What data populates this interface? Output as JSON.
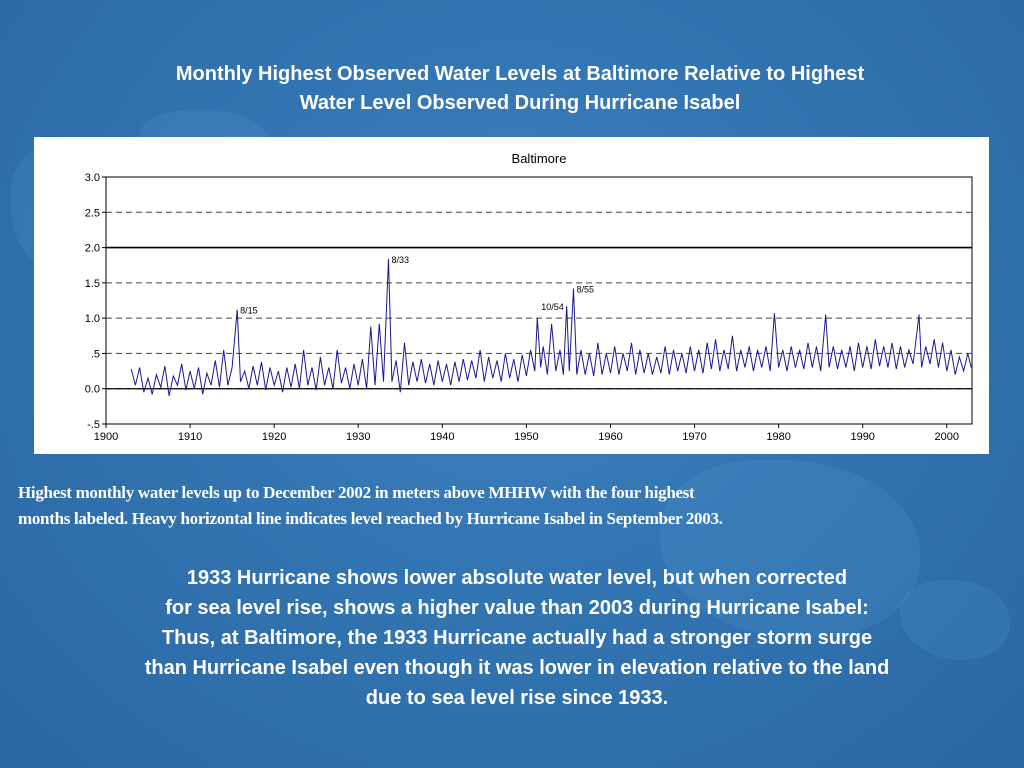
{
  "slide": {
    "title_line1": "Monthly Highest Observed Water Levels at Baltimore Relative to Highest",
    "title_line2": "Water Level Observed During Hurricane Isabel",
    "caption_line1": "Highest monthly water levels up to December 2002 in meters above MHHW with the four highest",
    "caption_line2": "months labeled.  Heavy horizontal line indicates level reached by Hurricane Isabel in September 2003.",
    "note_lines": [
      "1933 Hurricane shows lower absolute water level, but when corrected",
      "for sea level rise, shows a higher value than 2003 during Hurricane Isabel:",
      "Thus, at Baltimore, the 1933 Hurricane actually had a stronger storm surge",
      "than Hurricane Isabel even though it was lower in elevation relative to the land",
      "due to sea level rise since 1933."
    ]
  },
  "chart_data": {
    "type": "line",
    "title": "Baltimore",
    "xlabel": "",
    "ylabel": "",
    "xlim": [
      1900,
      2003
    ],
    "ylim": [
      -0.5,
      3.0
    ],
    "x_ticks": [
      1900,
      1910,
      1920,
      1930,
      1940,
      1950,
      1960,
      1970,
      1980,
      1990,
      2000
    ],
    "y_ticks": [
      {
        "value": 3.0,
        "label": "3.0"
      },
      {
        "value": 2.5,
        "label": "2.5"
      },
      {
        "value": 2.0,
        "label": "2.0"
      },
      {
        "value": 1.5,
        "label": "1.5"
      },
      {
        "value": 1.0,
        "label": "1.0"
      },
      {
        "value": 0.5,
        "label": ".5"
      },
      {
        "value": 0.0,
        "label": "0.0"
      },
      {
        "value": -0.5,
        "label": "-.5"
      }
    ],
    "grid": "dashed horizontal",
    "isabel_level": 2.0,
    "zero_line": 0.0,
    "series_color": "#1a1a8c",
    "labeled_peaks": [
      {
        "x": 1915.6,
        "y": 1.12,
        "label": "8/15"
      },
      {
        "x": 1933.6,
        "y": 1.84,
        "label": "8/33"
      },
      {
        "x": 1954.8,
        "y": 1.17,
        "label": "10/54"
      },
      {
        "x": 1955.6,
        "y": 1.42,
        "label": "8/55"
      }
    ],
    "series": [
      {
        "values": [
          [
            1903.0,
            0.28
          ],
          [
            1903.5,
            0.05
          ],
          [
            1904.0,
            0.3
          ],
          [
            1904.5,
            -0.05
          ],
          [
            1905.0,
            0.15
          ],
          [
            1905.5,
            -0.08
          ],
          [
            1906.0,
            0.2
          ],
          [
            1906.5,
            0.02
          ],
          [
            1907.0,
            0.32
          ],
          [
            1907.5,
            -0.1
          ],
          [
            1908.0,
            0.18
          ],
          [
            1908.5,
            0.05
          ],
          [
            1909.0,
            0.35
          ],
          [
            1909.5,
            -0.02
          ],
          [
            1910.0,
            0.25
          ],
          [
            1910.5,
            0.0
          ],
          [
            1911.0,
            0.3
          ],
          [
            1911.5,
            -0.08
          ],
          [
            1912.0,
            0.22
          ],
          [
            1912.5,
            0.05
          ],
          [
            1913.0,
            0.4
          ],
          [
            1913.5,
            0.02
          ],
          [
            1914.0,
            0.55
          ],
          [
            1914.5,
            0.05
          ],
          [
            1915.0,
            0.3
          ],
          [
            1915.6,
            1.12
          ],
          [
            1916.0,
            0.1
          ],
          [
            1916.5,
            0.25
          ],
          [
            1917.0,
            0.0
          ],
          [
            1917.5,
            0.32
          ],
          [
            1918.0,
            0.05
          ],
          [
            1918.5,
            0.38
          ],
          [
            1919.0,
            -0.02
          ],
          [
            1919.5,
            0.3
          ],
          [
            1920.0,
            0.05
          ],
          [
            1920.5,
            0.25
          ],
          [
            1921.0,
            -0.05
          ],
          [
            1921.5,
            0.3
          ],
          [
            1922.0,
            0.02
          ],
          [
            1922.5,
            0.35
          ],
          [
            1923.0,
            0.0
          ],
          [
            1923.5,
            0.55
          ],
          [
            1924.0,
            0.05
          ],
          [
            1924.5,
            0.3
          ],
          [
            1925.0,
            -0.02
          ],
          [
            1925.5,
            0.45
          ],
          [
            1926.0,
            0.05
          ],
          [
            1926.5,
            0.3
          ],
          [
            1927.0,
            0.0
          ],
          [
            1927.5,
            0.55
          ],
          [
            1928.0,
            0.08
          ],
          [
            1928.5,
            0.3
          ],
          [
            1929.0,
            0.0
          ],
          [
            1929.5,
            0.35
          ],
          [
            1930.0,
            0.05
          ],
          [
            1930.5,
            0.42
          ],
          [
            1931.0,
            0.0
          ],
          [
            1931.5,
            0.88
          ],
          [
            1932.0,
            0.05
          ],
          [
            1932.5,
            0.92
          ],
          [
            1933.0,
            0.1
          ],
          [
            1933.6,
            1.84
          ],
          [
            1934.0,
            0.1
          ],
          [
            1934.5,
            0.4
          ],
          [
            1935.0,
            -0.05
          ],
          [
            1935.5,
            0.65
          ],
          [
            1936.0,
            0.05
          ],
          [
            1936.5,
            0.38
          ],
          [
            1937.0,
            0.1
          ],
          [
            1937.5,
            0.42
          ],
          [
            1938.0,
            0.08
          ],
          [
            1938.5,
            0.35
          ],
          [
            1939.0,
            0.05
          ],
          [
            1939.5,
            0.4
          ],
          [
            1940.0,
            0.1
          ],
          [
            1940.5,
            0.35
          ],
          [
            1941.0,
            0.05
          ],
          [
            1941.5,
            0.38
          ],
          [
            1942.0,
            0.1
          ],
          [
            1942.5,
            0.42
          ],
          [
            1943.0,
            0.12
          ],
          [
            1943.5,
            0.4
          ],
          [
            1944.0,
            0.15
          ],
          [
            1944.5,
            0.55
          ],
          [
            1945.0,
            0.1
          ],
          [
            1945.5,
            0.45
          ],
          [
            1946.0,
            0.15
          ],
          [
            1946.5,
            0.4
          ],
          [
            1947.0,
            0.1
          ],
          [
            1947.5,
            0.5
          ],
          [
            1948.0,
            0.15
          ],
          [
            1948.5,
            0.42
          ],
          [
            1949.0,
            0.1
          ],
          [
            1949.5,
            0.48
          ],
          [
            1950.0,
            0.18
          ],
          [
            1950.5,
            0.55
          ],
          [
            1951.0,
            0.25
          ],
          [
            1951.3,
            1.0
          ],
          [
            1951.7,
            0.3
          ],
          [
            1952.0,
            0.6
          ],
          [
            1952.5,
            0.2
          ],
          [
            1953.0,
            0.92
          ],
          [
            1953.5,
            0.25
          ],
          [
            1954.0,
            0.55
          ],
          [
            1954.4,
            0.2
          ],
          [
            1954.8,
            1.17
          ],
          [
            1955.1,
            0.25
          ],
          [
            1955.6,
            1.42
          ],
          [
            1956.0,
            0.2
          ],
          [
            1956.5,
            0.55
          ],
          [
            1957.0,
            0.2
          ],
          [
            1957.5,
            0.5
          ],
          [
            1958.0,
            0.18
          ],
          [
            1958.5,
            0.65
          ],
          [
            1959.0,
            0.2
          ],
          [
            1959.5,
            0.5
          ],
          [
            1960.0,
            0.22
          ],
          [
            1960.5,
            0.6
          ],
          [
            1961.0,
            0.2
          ],
          [
            1961.5,
            0.5
          ],
          [
            1962.0,
            0.25
          ],
          [
            1962.5,
            0.65
          ],
          [
            1963.0,
            0.2
          ],
          [
            1963.5,
            0.55
          ],
          [
            1964.0,
            0.22
          ],
          [
            1964.5,
            0.5
          ],
          [
            1965.0,
            0.2
          ],
          [
            1965.5,
            0.45
          ],
          [
            1966.0,
            0.22
          ],
          [
            1966.5,
            0.6
          ],
          [
            1967.0,
            0.2
          ],
          [
            1967.5,
            0.55
          ],
          [
            1968.0,
            0.25
          ],
          [
            1968.5,
            0.5
          ],
          [
            1969.0,
            0.22
          ],
          [
            1969.5,
            0.6
          ],
          [
            1970.0,
            0.25
          ],
          [
            1970.5,
            0.55
          ],
          [
            1971.0,
            0.22
          ],
          [
            1971.5,
            0.65
          ],
          [
            1972.0,
            0.28
          ],
          [
            1972.5,
            0.7
          ],
          [
            1973.0,
            0.25
          ],
          [
            1973.5,
            0.55
          ],
          [
            1974.0,
            0.28
          ],
          [
            1974.5,
            0.75
          ],
          [
            1975.0,
            0.25
          ],
          [
            1975.5,
            0.55
          ],
          [
            1976.0,
            0.3
          ],
          [
            1976.5,
            0.6
          ],
          [
            1977.0,
            0.25
          ],
          [
            1977.5,
            0.55
          ],
          [
            1978.0,
            0.3
          ],
          [
            1978.5,
            0.6
          ],
          [
            1979.0,
            0.25
          ],
          [
            1979.5,
            1.07
          ],
          [
            1980.0,
            0.3
          ],
          [
            1980.5,
            0.55
          ],
          [
            1981.0,
            0.25
          ],
          [
            1981.5,
            0.6
          ],
          [
            1982.0,
            0.3
          ],
          [
            1982.5,
            0.55
          ],
          [
            1983.0,
            0.28
          ],
          [
            1983.5,
            0.65
          ],
          [
            1984.0,
            0.3
          ],
          [
            1984.5,
            0.6
          ],
          [
            1985.0,
            0.25
          ],
          [
            1985.6,
            1.05
          ],
          [
            1986.0,
            0.3
          ],
          [
            1986.5,
            0.6
          ],
          [
            1987.0,
            0.28
          ],
          [
            1987.5,
            0.55
          ],
          [
            1988.0,
            0.3
          ],
          [
            1988.5,
            0.6
          ],
          [
            1989.0,
            0.25
          ],
          [
            1989.5,
            0.65
          ],
          [
            1990.0,
            0.3
          ],
          [
            1990.5,
            0.6
          ],
          [
            1991.0,
            0.28
          ],
          [
            1991.5,
            0.7
          ],
          [
            1992.0,
            0.32
          ],
          [
            1992.5,
            0.6
          ],
          [
            1993.0,
            0.3
          ],
          [
            1993.5,
            0.65
          ],
          [
            1994.0,
            0.28
          ],
          [
            1994.5,
            0.6
          ],
          [
            1995.0,
            0.3
          ],
          [
            1995.5,
            0.55
          ],
          [
            1996.0,
            0.35
          ],
          [
            1996.7,
            1.05
          ],
          [
            1997.0,
            0.3
          ],
          [
            1997.5,
            0.6
          ],
          [
            1998.0,
            0.35
          ],
          [
            1998.5,
            0.7
          ],
          [
            1999.0,
            0.3
          ],
          [
            1999.5,
            0.65
          ],
          [
            2000.0,
            0.25
          ],
          [
            2000.5,
            0.55
          ],
          [
            2001.0,
            0.2
          ],
          [
            2001.5,
            0.45
          ],
          [
            2002.0,
            0.25
          ],
          [
            2002.5,
            0.5
          ],
          [
            2002.9,
            0.3
          ]
        ]
      }
    ]
  }
}
